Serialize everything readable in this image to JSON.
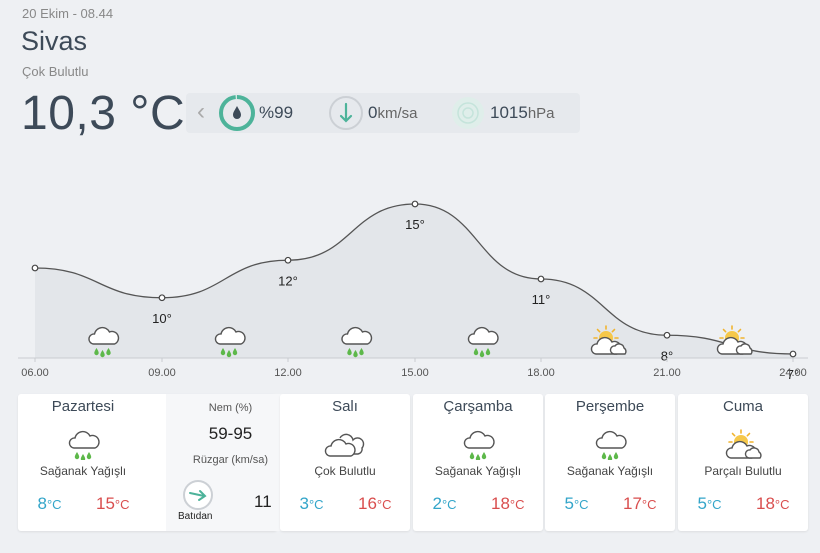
{
  "header": {
    "date": "20 Ekim - 08.44",
    "city": "Sivas",
    "description": "Çok Bulutlu",
    "temperature": "10,3 °C"
  },
  "stats": {
    "humidity_value": "%99",
    "wind_value": "0",
    "wind_unit": "km/sa",
    "pressure_value": "1015",
    "pressure_unit": "hPa"
  },
  "hourly": {
    "times": [
      "06.00",
      "09.00",
      "12.00",
      "15.00",
      "18.00",
      "21.00",
      "24.00"
    ],
    "temps": [
      null,
      10,
      12,
      15,
      11,
      8,
      7
    ],
    "temp_labels": [
      "",
      "10°",
      "12°",
      "15°",
      "11°",
      "8°",
      "7°"
    ],
    "icons": [
      "rain-cloud-icon",
      "rain-cloud-icon",
      "rain-cloud-icon",
      "rain-cloud-icon",
      "partly-cloudy-icon",
      "partly-cloudy-icon"
    ]
  },
  "days": [
    {
      "name": "Pazartesi",
      "condition": "Sağanak Yağışlı",
      "low": "8",
      "high": "15",
      "icon": "rain-cloud-icon"
    },
    {
      "name": "Salı",
      "condition": "Çok Bulutlu",
      "low": "3",
      "high": "16",
      "icon": "cloud-icon"
    },
    {
      "name": "Çarşamba",
      "condition": "Sağanak Yağışlı",
      "low": "2",
      "high": "18",
      "icon": "rain-cloud-icon"
    },
    {
      "name": "Perşembe",
      "condition": "Sağanak Yağışlı",
      "low": "5",
      "high": "17",
      "icon": "rain-cloud-icon"
    },
    {
      "name": "Cuma",
      "condition": "Parçalı Bulutlu",
      "low": "5",
      "high": "18",
      "icon": "partly-cloudy-icon"
    }
  ],
  "monday_detail": {
    "humidity_label": "Nem (%)",
    "humidity_value": "59-95",
    "wind_label": "Rüzgar (km/sa)",
    "wind_direction": "Batıdan",
    "wind_value": "11"
  },
  "temp_unit": "°C",
  "colors": {
    "low": "#33a5c9",
    "high": "#d94e4e",
    "accent": "#4db39a"
  }
}
